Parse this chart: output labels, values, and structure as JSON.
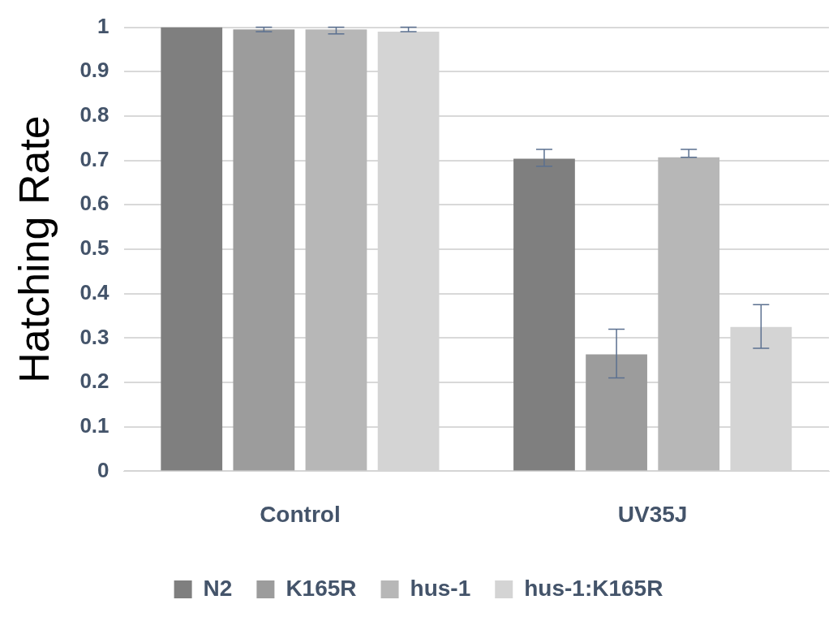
{
  "chart_data": {
    "type": "bar",
    "ylabel": "Hatching Rate",
    "categories": [
      "Control",
      "UV35J"
    ],
    "series": [
      {
        "name": "N2",
        "color": "#7f7f7f",
        "values": [
          1.0,
          0.704
        ],
        "errors": [
          null,
          [
            0.687,
            0.725
          ]
        ]
      },
      {
        "name": "K165R",
        "color": "#9c9c9c",
        "values": [
          0.995,
          0.263
        ],
        "errors": [
          [
            0.99,
            1.0
          ],
          [
            0.21,
            0.32
          ]
        ]
      },
      {
        "name": "hus-1",
        "color": "#b7b7b7",
        "values": [
          0.995,
          0.707
        ],
        "errors": [
          [
            0.985,
            1.0
          ],
          [
            0.707,
            0.725
          ]
        ]
      },
      {
        "name": "hus-1:K165R",
        "color": "#d4d4d4",
        "values": [
          0.99,
          0.325
        ],
        "errors": [
          [
            0.99,
            1.0
          ],
          [
            0.277,
            0.375
          ]
        ]
      }
    ],
    "ylim": [
      0,
      1
    ],
    "yticks": [
      0,
      0.1,
      0.2,
      0.3,
      0.4,
      0.5,
      0.6,
      0.7,
      0.8,
      0.9,
      1
    ],
    "grid": "y",
    "legend": "bottom"
  }
}
